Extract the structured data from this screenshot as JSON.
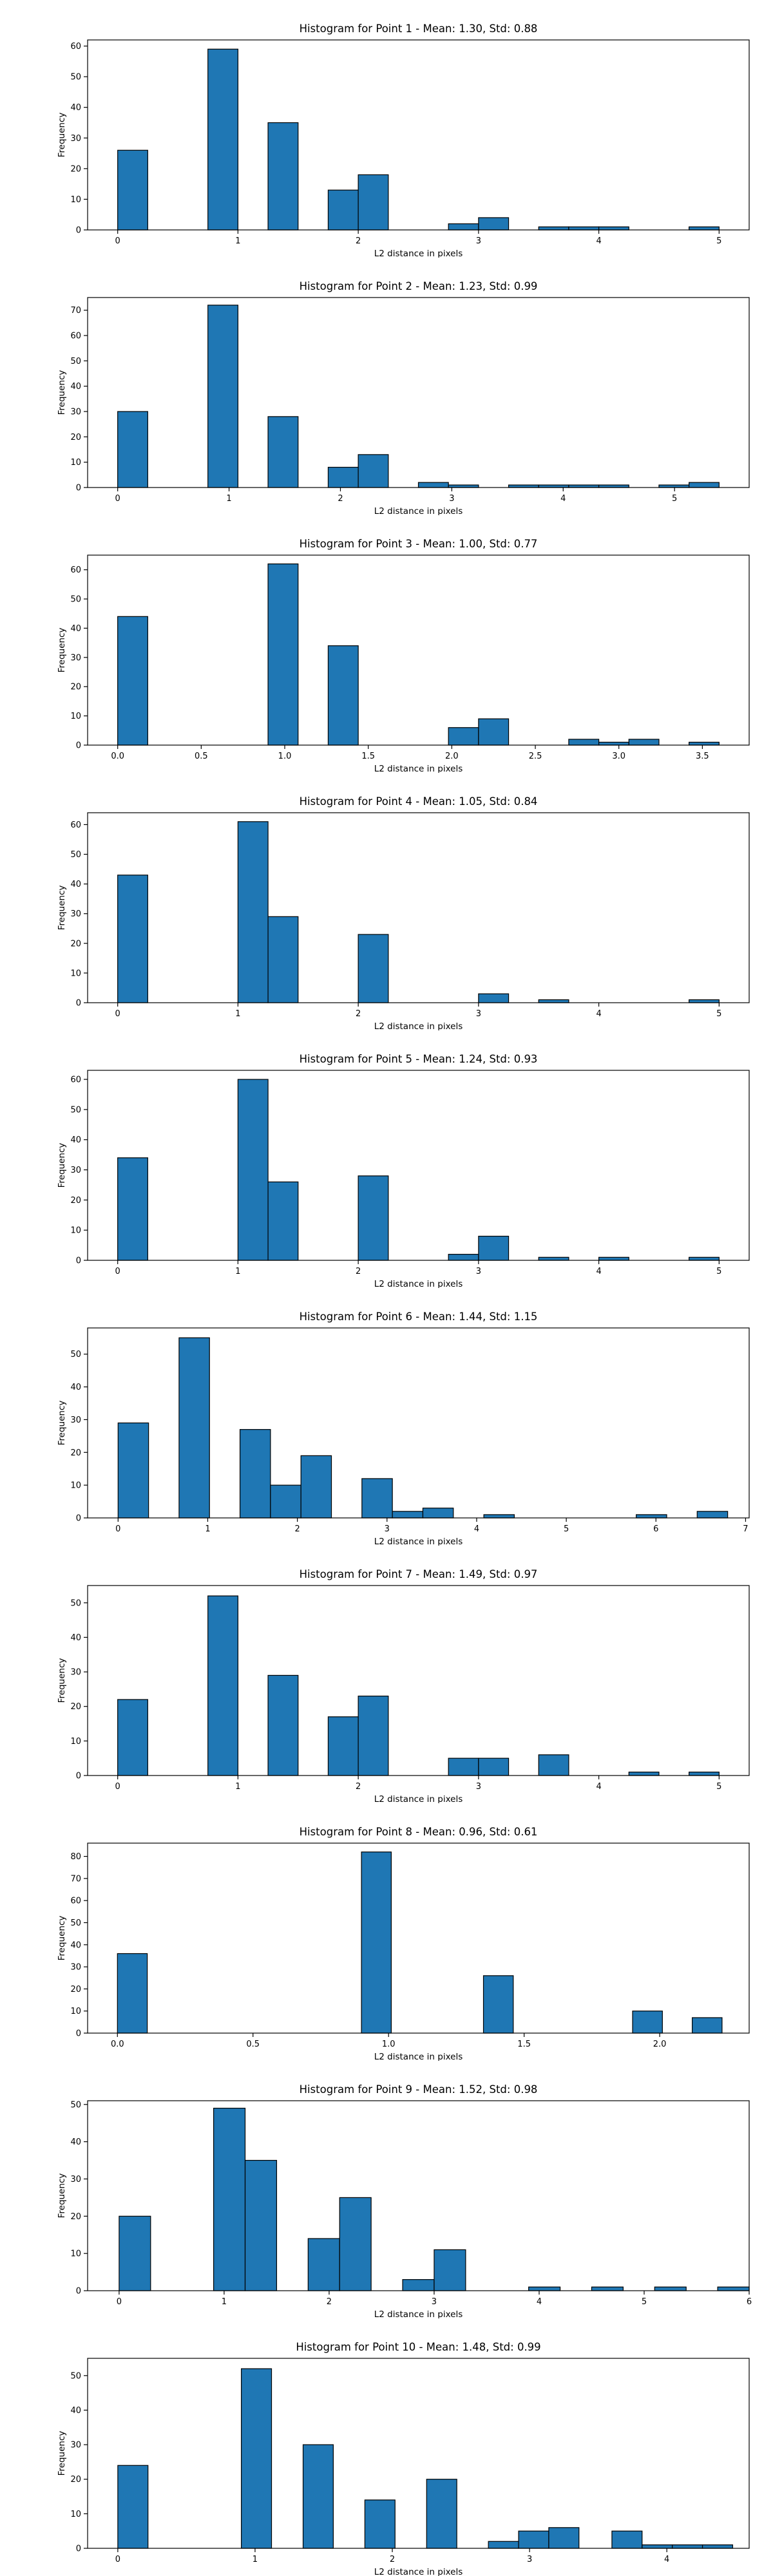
{
  "chart_data": [
    {
      "type": "bar",
      "title": "Histogram for Point 1 - Mean: 1.30, Std: 0.88",
      "xlabel": "L2 distance in pixels",
      "ylabel": "Frequency",
      "xlim": [
        -0.25,
        5.25
      ],
      "ylim": [
        0,
        62
      ],
      "xticks": [
        0,
        1,
        2,
        3,
        4,
        5
      ],
      "xtick_labels": [
        "0",
        "1",
        "2",
        "3",
        "4",
        "5"
      ],
      "yticks": [
        0,
        10,
        20,
        30,
        40,
        50,
        60
      ],
      "grid": false,
      "bin_width": 0.25,
      "bars": [
        {
          "x": 0.0,
          "height": 26
        },
        {
          "x": 0.75,
          "height": 59
        },
        {
          "x": 1.25,
          "height": 35
        },
        {
          "x": 1.75,
          "height": 13
        },
        {
          "x": 2.0,
          "height": 18
        },
        {
          "x": 2.75,
          "height": 2
        },
        {
          "x": 3.0,
          "height": 4
        },
        {
          "x": 3.5,
          "height": 1
        },
        {
          "x": 3.75,
          "height": 1
        },
        {
          "x": 4.0,
          "height": 1
        },
        {
          "x": 4.75,
          "height": 1
        }
      ]
    },
    {
      "type": "bar",
      "title": "Histogram for Point 2 - Mean: 1.23, Std: 0.99",
      "xlabel": "L2 distance in pixels",
      "ylabel": "Frequency",
      "xlim": [
        -0.27,
        5.67
      ],
      "ylim": [
        0,
        75
      ],
      "xticks": [
        0,
        1,
        2,
        3,
        4,
        5
      ],
      "xtick_labels": [
        "0",
        "1",
        "2",
        "3",
        "4",
        "5"
      ],
      "yticks": [
        0,
        10,
        20,
        30,
        40,
        50,
        60,
        70
      ],
      "grid": false,
      "bin_width": 0.27,
      "bars": [
        {
          "x": 0.0,
          "height": 30
        },
        {
          "x": 0.81,
          "height": 72
        },
        {
          "x": 1.35,
          "height": 28
        },
        {
          "x": 1.89,
          "height": 8
        },
        {
          "x": 2.16,
          "height": 13
        },
        {
          "x": 2.7,
          "height": 2
        },
        {
          "x": 2.97,
          "height": 1
        },
        {
          "x": 3.51,
          "height": 1
        },
        {
          "x": 3.78,
          "height": 1
        },
        {
          "x": 4.05,
          "height": 1
        },
        {
          "x": 4.32,
          "height": 1
        },
        {
          "x": 4.86,
          "height": 1
        },
        {
          "x": 5.13,
          "height": 2
        }
      ]
    },
    {
      "type": "bar",
      "title": "Histogram for Point 3 - Mean: 1.00, Std: 0.77",
      "xlabel": "L2 distance in pixels",
      "ylabel": "Frequency",
      "xlim": [
        -0.18,
        3.78
      ],
      "ylim": [
        0,
        65
      ],
      "xticks": [
        0.0,
        0.5,
        1.0,
        1.5,
        2.0,
        2.5,
        3.0,
        3.5
      ],
      "xtick_labels": [
        "0.0",
        "0.5",
        "1.0",
        "1.5",
        "2.0",
        "2.5",
        "3.0",
        "3.5"
      ],
      "yticks": [
        0,
        10,
        20,
        30,
        40,
        50,
        60
      ],
      "grid": false,
      "bin_width": 0.18,
      "bars": [
        {
          "x": 0.0,
          "height": 44
        },
        {
          "x": 0.9,
          "height": 62
        },
        {
          "x": 1.26,
          "height": 34
        },
        {
          "x": 1.98,
          "height": 6
        },
        {
          "x": 2.16,
          "height": 9
        },
        {
          "x": 2.7,
          "height": 2
        },
        {
          "x": 2.88,
          "height": 1
        },
        {
          "x": 3.06,
          "height": 2
        },
        {
          "x": 3.42,
          "height": 1
        }
      ]
    },
    {
      "type": "bar",
      "title": "Histogram for Point 4 - Mean: 1.05, Std: 0.84",
      "xlabel": "L2 distance in pixels",
      "ylabel": "Frequency",
      "xlim": [
        -0.25,
        5.25
      ],
      "ylim": [
        0,
        64
      ],
      "xticks": [
        0,
        1,
        2,
        3,
        4,
        5
      ],
      "xtick_labels": [
        "0",
        "1",
        "2",
        "3",
        "4",
        "5"
      ],
      "yticks": [
        0,
        10,
        20,
        30,
        40,
        50,
        60
      ],
      "grid": false,
      "bin_width": 0.25,
      "bars": [
        {
          "x": 0.0,
          "height": 43
        },
        {
          "x": 1.0,
          "height": 61
        },
        {
          "x": 1.25,
          "height": 29
        },
        {
          "x": 2.0,
          "height": 23
        },
        {
          "x": 3.0,
          "height": 3
        },
        {
          "x": 3.5,
          "height": 1
        },
        {
          "x": 4.75,
          "height": 1
        }
      ]
    },
    {
      "type": "bar",
      "title": "Histogram for Point 5 - Mean: 1.24, Std: 0.93",
      "xlabel": "L2 distance in pixels",
      "ylabel": "Frequency",
      "xlim": [
        -0.25,
        5.25
      ],
      "ylim": [
        0,
        63
      ],
      "xticks": [
        0,
        1,
        2,
        3,
        4,
        5
      ],
      "xtick_labels": [
        "0",
        "1",
        "2",
        "3",
        "4",
        "5"
      ],
      "yticks": [
        0,
        10,
        20,
        30,
        40,
        50,
        60
      ],
      "grid": false,
      "bin_width": 0.25,
      "bars": [
        {
          "x": 0.0,
          "height": 34
        },
        {
          "x": 1.0,
          "height": 60
        },
        {
          "x": 1.25,
          "height": 26
        },
        {
          "x": 2.0,
          "height": 28
        },
        {
          "x": 2.75,
          "height": 2
        },
        {
          "x": 3.0,
          "height": 8
        },
        {
          "x": 3.5,
          "height": 1
        },
        {
          "x": 4.0,
          "height": 1
        },
        {
          "x": 4.75,
          "height": 1
        }
      ]
    },
    {
      "type": "bar",
      "title": "Histogram for Point 6 - Mean: 1.44, Std: 1.15",
      "xlabel": "L2 distance in pixels",
      "ylabel": "Frequency",
      "xlim": [
        -0.34,
        7.04
      ],
      "ylim": [
        0,
        58
      ],
      "xticks": [
        0,
        1,
        2,
        3,
        4,
        5,
        6,
        7
      ],
      "xtick_labels": [
        "0",
        "1",
        "2",
        "3",
        "4",
        "5",
        "6",
        "7"
      ],
      "yticks": [
        0,
        10,
        20,
        30,
        40,
        50
      ],
      "grid": false,
      "bin_width": 0.34,
      "bars": [
        {
          "x": 0.0,
          "height": 29
        },
        {
          "x": 0.68,
          "height": 55
        },
        {
          "x": 1.36,
          "height": 27
        },
        {
          "x": 1.7,
          "height": 10
        },
        {
          "x": 2.04,
          "height": 19
        },
        {
          "x": 2.72,
          "height": 12
        },
        {
          "x": 3.06,
          "height": 2
        },
        {
          "x": 3.4,
          "height": 3
        },
        {
          "x": 4.08,
          "height": 1
        },
        {
          "x": 5.78,
          "height": 1
        },
        {
          "x": 6.46,
          "height": 2
        }
      ]
    },
    {
      "type": "bar",
      "title": "Histogram for Point 7 - Mean: 1.49, Std: 0.97",
      "xlabel": "L2 distance in pixels",
      "ylabel": "Frequency",
      "xlim": [
        -0.25,
        5.25
      ],
      "ylim": [
        0,
        55
      ],
      "xticks": [
        0,
        1,
        2,
        3,
        4,
        5
      ],
      "xtick_labels": [
        "0",
        "1",
        "2",
        "3",
        "4",
        "5"
      ],
      "yticks": [
        0,
        10,
        20,
        30,
        40,
        50
      ],
      "grid": false,
      "bin_width": 0.25,
      "bars": [
        {
          "x": 0.0,
          "height": 22
        },
        {
          "x": 0.75,
          "height": 52
        },
        {
          "x": 1.25,
          "height": 29
        },
        {
          "x": 1.75,
          "height": 17
        },
        {
          "x": 2.0,
          "height": 23
        },
        {
          "x": 2.75,
          "height": 5
        },
        {
          "x": 3.0,
          "height": 5
        },
        {
          "x": 3.5,
          "height": 6
        },
        {
          "x": 4.25,
          "height": 1
        },
        {
          "x": 4.75,
          "height": 1
        }
      ]
    },
    {
      "type": "bar",
      "title": "Histogram for Point 8 - Mean: 0.96, Std: 0.61",
      "xlabel": "L2 distance in pixels",
      "ylabel": "Frequency",
      "xlim": [
        -0.11,
        2.33
      ],
      "ylim": [
        0,
        86
      ],
      "xticks": [
        0.0,
        0.5,
        1.0,
        1.5,
        2.0
      ],
      "xtick_labels": [
        "0.0",
        "0.5",
        "1.0",
        "1.5",
        "2.0"
      ],
      "yticks": [
        0,
        10,
        20,
        30,
        40,
        50,
        60,
        70,
        80
      ],
      "grid": false,
      "bin_width": 0.11,
      "bars": [
        {
          "x": 0.0,
          "height": 36
        },
        {
          "x": 0.9,
          "height": 82
        },
        {
          "x": 1.35,
          "height": 26
        },
        {
          "x": 1.9,
          "height": 10
        },
        {
          "x": 2.12,
          "height": 7
        }
      ]
    },
    {
      "type": "bar",
      "title": "Histogram for Point 9 - Mean: 1.52, Std: 0.98",
      "xlabel": "L2 distance in pixels",
      "ylabel": "Frequency",
      "xlim": [
        -0.3,
        6.0
      ],
      "ylim": [
        0,
        51
      ],
      "xticks": [
        0,
        1,
        2,
        3,
        4,
        5,
        6
      ],
      "xtick_labels": [
        "0",
        "1",
        "2",
        "3",
        "4",
        "5",
        "6"
      ],
      "yticks": [
        0,
        10,
        20,
        30,
        40,
        50
      ],
      "grid": false,
      "bin_width": 0.3,
      "bars": [
        {
          "x": 0.0,
          "height": 20
        },
        {
          "x": 0.9,
          "height": 49
        },
        {
          "x": 1.2,
          "height": 35
        },
        {
          "x": 1.8,
          "height": 14
        },
        {
          "x": 2.1,
          "height": 25
        },
        {
          "x": 2.7,
          "height": 3
        },
        {
          "x": 3.0,
          "height": 11
        },
        {
          "x": 3.9,
          "height": 1
        },
        {
          "x": 4.5,
          "height": 1
        },
        {
          "x": 5.1,
          "height": 1
        },
        {
          "x": 5.7,
          "height": 1
        }
      ]
    },
    {
      "type": "bar",
      "title": "Histogram for Point 10 - Mean: 1.48, Std: 0.99",
      "xlabel": "L2 distance in pixels",
      "ylabel": "Frequency",
      "xlim": [
        -0.22,
        4.6
      ],
      "ylim": [
        0,
        55
      ],
      "xticks": [
        0,
        1,
        2,
        3,
        4
      ],
      "xtick_labels": [
        "0",
        "1",
        "2",
        "3",
        "4"
      ],
      "yticks": [
        0,
        10,
        20,
        30,
        40,
        50
      ],
      "grid": false,
      "bin_width": 0.22,
      "bars": [
        {
          "x": 0.0,
          "height": 24
        },
        {
          "x": 0.9,
          "height": 52
        },
        {
          "x": 1.35,
          "height": 30
        },
        {
          "x": 1.8,
          "height": 14
        },
        {
          "x": 2.25,
          "height": 20
        },
        {
          "x": 2.7,
          "height": 2
        },
        {
          "x": 2.92,
          "height": 5
        },
        {
          "x": 3.14,
          "height": 6
        },
        {
          "x": 3.6,
          "height": 5
        },
        {
          "x": 3.82,
          "height": 1
        },
        {
          "x": 4.04,
          "height": 1
        },
        {
          "x": 4.26,
          "height": 1
        }
      ]
    }
  ]
}
